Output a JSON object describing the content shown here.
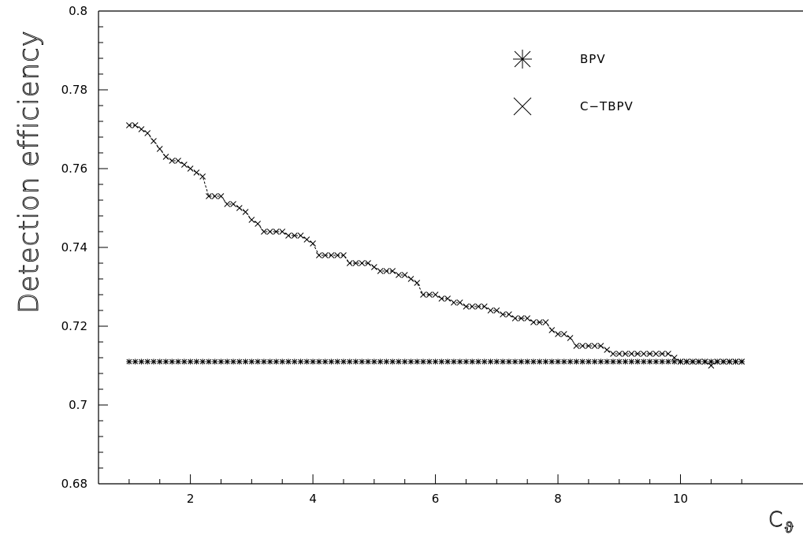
{
  "chart_data": {
    "type": "scatter",
    "title": "",
    "xlabel": "C_ϑ",
    "xlabel_main": "C",
    "xlabel_sub": "ϑ",
    "ylabel": "Detection efficiency",
    "xlim": [
      0.5,
      12.0
    ],
    "ylim": [
      0.68,
      0.8
    ],
    "x_ticks": [
      2,
      4,
      6,
      8,
      10
    ],
    "y_ticks": [
      0.68,
      0.7,
      0.72,
      0.74,
      0.76,
      0.78,
      0.8
    ],
    "x_tick_labels": [
      "2",
      "4",
      "6",
      "8",
      "10"
    ],
    "y_tick_labels": [
      "0.68",
      "0.7",
      "0.72",
      "0.74",
      "0.76",
      "0.78",
      "0.8"
    ],
    "grid": false,
    "legend_position": "top-right",
    "series": [
      {
        "name": "BPV",
        "marker": "asterisk",
        "line": "none",
        "x_start": 1.0,
        "x_step": 0.1,
        "values": [
          0.711,
          0.711,
          0.711,
          0.711,
          0.711,
          0.711,
          0.711,
          0.711,
          0.711,
          0.711,
          0.711,
          0.711,
          0.711,
          0.711,
          0.711,
          0.711,
          0.711,
          0.711,
          0.711,
          0.711,
          0.711,
          0.711,
          0.711,
          0.711,
          0.711,
          0.711,
          0.711,
          0.711,
          0.711,
          0.711,
          0.711,
          0.711,
          0.711,
          0.711,
          0.711,
          0.711,
          0.711,
          0.711,
          0.711,
          0.711,
          0.711,
          0.711,
          0.711,
          0.711,
          0.711,
          0.711,
          0.711,
          0.711,
          0.711,
          0.711,
          0.711,
          0.711,
          0.711,
          0.711,
          0.711,
          0.711,
          0.711,
          0.711,
          0.711,
          0.711,
          0.711,
          0.711,
          0.711,
          0.711,
          0.711,
          0.711,
          0.711,
          0.711,
          0.711,
          0.711,
          0.711,
          0.711,
          0.711,
          0.711,
          0.711,
          0.711,
          0.711,
          0.711,
          0.711,
          0.711,
          0.711,
          0.711,
          0.711,
          0.711,
          0.711,
          0.711,
          0.711,
          0.711,
          0.711,
          0.711,
          0.711,
          0.711,
          0.711,
          0.711,
          0.711,
          0.711,
          0.711,
          0.711,
          0.711,
          0.711,
          0.711
        ]
      },
      {
        "name": "C−TBPV",
        "marker": "cross",
        "line": "dashed",
        "x_start": 1.0,
        "x_step": 0.1,
        "values": [
          0.771,
          0.771,
          0.77,
          0.769,
          0.767,
          0.765,
          0.763,
          0.762,
          0.762,
          0.761,
          0.76,
          0.759,
          0.758,
          0.753,
          0.753,
          0.753,
          0.751,
          0.751,
          0.75,
          0.749,
          0.747,
          0.746,
          0.744,
          0.744,
          0.744,
          0.744,
          0.743,
          0.743,
          0.743,
          0.742,
          0.741,
          0.738,
          0.738,
          0.738,
          0.738,
          0.738,
          0.736,
          0.736,
          0.736,
          0.736,
          0.735,
          0.734,
          0.734,
          0.734,
          0.733,
          0.733,
          0.732,
          0.731,
          0.728,
          0.728,
          0.728,
          0.727,
          0.727,
          0.726,
          0.726,
          0.725,
          0.725,
          0.725,
          0.725,
          0.724,
          0.724,
          0.723,
          0.723,
          0.722,
          0.722,
          0.722,
          0.721,
          0.721,
          0.721,
          0.719,
          0.718,
          0.718,
          0.717,
          0.715,
          0.715,
          0.715,
          0.715,
          0.715,
          0.714,
          0.713,
          0.713,
          0.713,
          0.713,
          0.713,
          0.713,
          0.713,
          0.713,
          0.713,
          0.713,
          0.712,
          0.711,
          0.711,
          0.711,
          0.711,
          0.711,
          0.71,
          0.711,
          0.711,
          0.711,
          0.711,
          0.711
        ]
      }
    ]
  }
}
